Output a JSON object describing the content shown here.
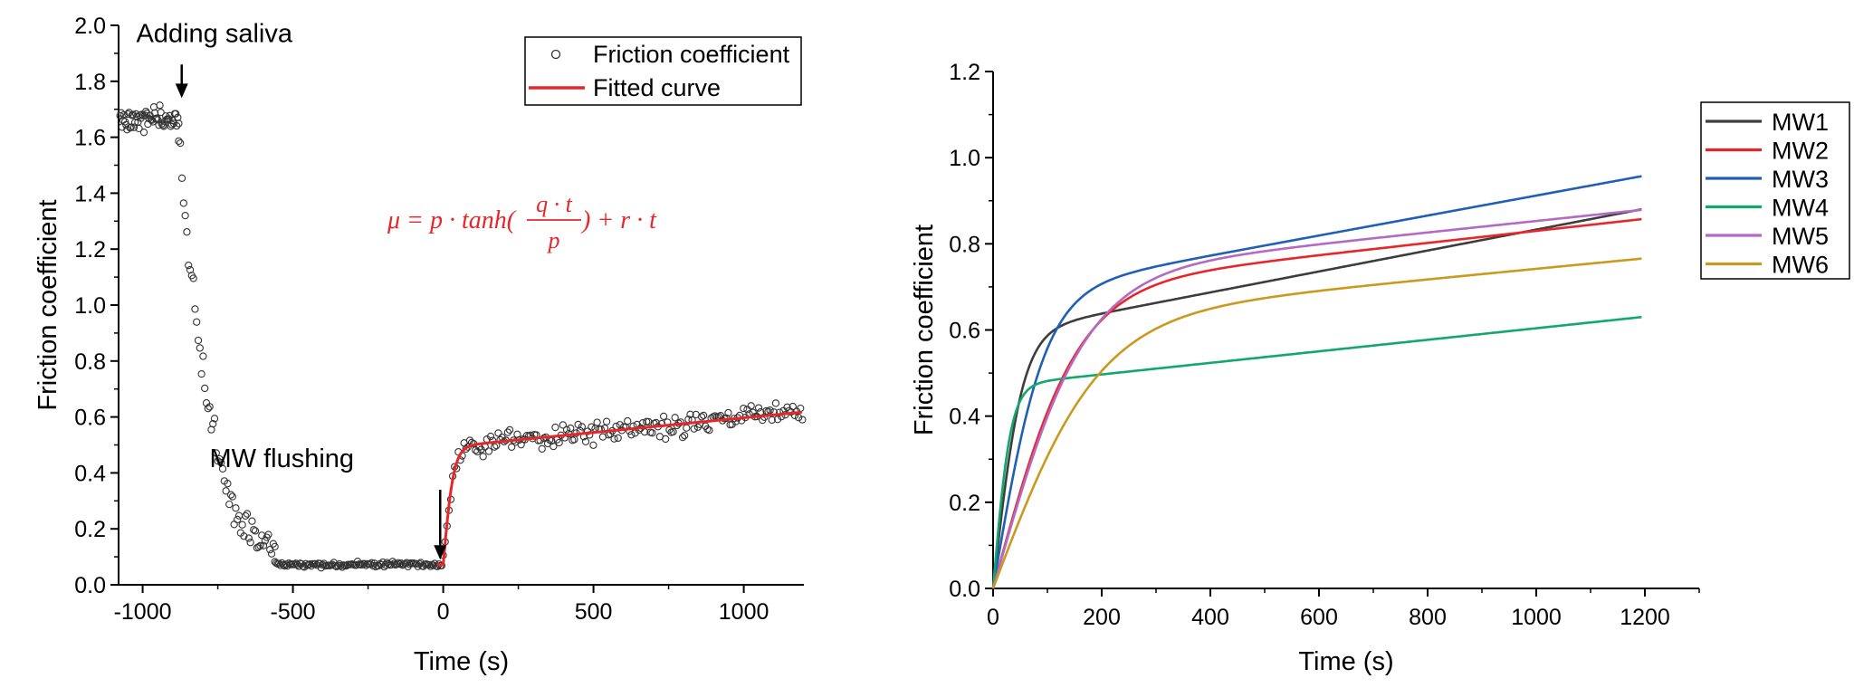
{
  "chart_data": [
    {
      "type": "scatter",
      "xlabel": "Time (s)",
      "ylabel": "Friction coefficient",
      "xlim": [
        -1080,
        1200
      ],
      "ylim": [
        0,
        2.0
      ],
      "xticks": [
        -1000,
        -500,
        0,
        500,
        1000
      ],
      "yticks": [
        0.0,
        0.2,
        0.4,
        0.6,
        0.8,
        1.0,
        1.2,
        1.4,
        1.6,
        1.8,
        2.0
      ],
      "ytick_labels": [
        "0.0",
        "0.2",
        "0.4",
        "0.6",
        "0.8",
        "1.0",
        "1.2",
        "1.4",
        "1.6",
        "1.8",
        "2.0"
      ],
      "legend": {
        "placement": "top-right",
        "entries": [
          {
            "label": "Friction coefficient",
            "marker": "open-circle",
            "color": "#333333"
          },
          {
            "label": "Fitted curve",
            "marker": "line",
            "color": "#e8262a"
          }
        ]
      },
      "annotations": [
        {
          "text": "Adding saliva",
          "x": -870,
          "arrow_from_y": 1.86,
          "arrow_to_y": 1.74,
          "text_y": 1.94
        },
        {
          "text": "MW flushing",
          "x": -10,
          "arrow_from_y": 0.34,
          "arrow_to_y": 0.09,
          "text_y": 0.42
        }
      ],
      "equation": {
        "prefix": "μ = p · tanh(",
        "numerator": "q · t",
        "denominator": "p",
        "suffix": ") + r · t",
        "color": "#e8262a",
        "x": -200,
        "y": 1.28
      },
      "series": [
        {
          "name": "Friction coefficient",
          "marker": "open-circle",
          "color": "#333333",
          "segments": [
            {
              "x_start": -1075,
              "x_end": -880,
              "n": 60,
              "kind": "constant",
              "value": 1.665,
              "noise": 0.035
            },
            {
              "x_start": -880,
              "x_end": -560,
              "n": 60,
              "kind": "decay",
              "from": 1.65,
              "to": 0.07,
              "tau": 95,
              "noise": 0.06
            },
            {
              "x_start": -560,
              "x_end": -5,
              "n": 120,
              "kind": "constant",
              "value": 0.072,
              "noise": 0.008
            },
            {
              "x_start": 0,
              "x_end": 1195,
              "n": 190,
              "kind": "fit",
              "noise": 0.035
            }
          ]
        },
        {
          "name": "Fitted curve",
          "color": "#e8262a",
          "kind": "fit",
          "x_range": [
            -20,
            1195
          ],
          "base_value": 0.072,
          "onset_x": 0,
          "p": 0.42,
          "q": 0.012,
          "r": 0.000105
        }
      ]
    },
    {
      "type": "line",
      "xlabel": "Time (s)",
      "ylabel": "Friction coefficient",
      "xlim": [
        0,
        1300
      ],
      "ylim": [
        0,
        1.2
      ],
      "xticks": [
        0,
        200,
        400,
        600,
        800,
        1000,
        1200
      ],
      "yticks": [
        0.0,
        0.2,
        0.4,
        0.6,
        0.8,
        1.0,
        1.2
      ],
      "ytick_labels": [
        "0.0",
        "0.2",
        "0.4",
        "0.6",
        "0.8",
        "1.0",
        "1.2"
      ],
      "legend": {
        "placement": "right"
      },
      "x_range": [
        0,
        1195
      ],
      "series": [
        {
          "name": "MW1",
          "color": "#3d3d3d",
          "p": 0.59,
          "q": 0.011,
          "r": 0.000243
        },
        {
          "name": "MW2",
          "color": "#e8262a",
          "p": 0.69,
          "q": 0.0045,
          "r": 0.00014
        },
        {
          "name": "MW3",
          "color": "#1f5fb5",
          "p": 0.68,
          "q": 0.0072,
          "r": 0.000232
        },
        {
          "name": "MW4",
          "color": "#12a86b",
          "p": 0.47,
          "q": 0.0145,
          "r": 0.000134
        },
        {
          "name": "MW5",
          "color": "#b36ac2",
          "p": 0.72,
          "q": 0.0043,
          "r": 0.000133
        },
        {
          "name": "MW6",
          "color": "#c99a1e",
          "p": 0.62,
          "q": 0.0032,
          "r": 0.000122
        }
      ]
    }
  ]
}
